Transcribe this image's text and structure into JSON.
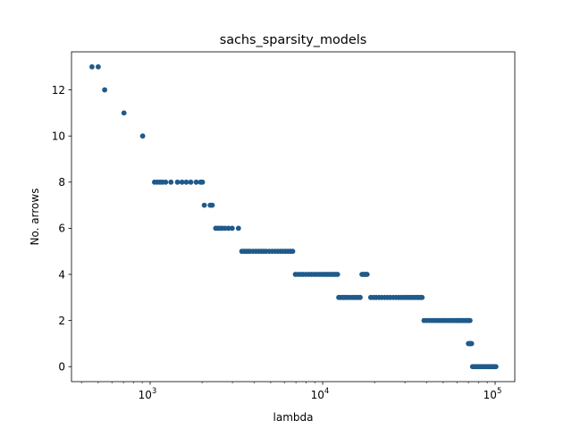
{
  "chart_data": {
    "type": "scatter",
    "title": "sachs_sparsity_models",
    "xlabel": "lambda",
    "ylabel": "No. arrows",
    "xscale": "log",
    "xlim": [
      350,
      130000
    ],
    "ylim": [
      -0.65,
      13.65
    ],
    "grid": false,
    "marker_color": "#1f5a8b",
    "x_ticks": [
      {
        "value": 1000,
        "base": "10",
        "exp": "3"
      },
      {
        "value": 10000,
        "base": "10",
        "exp": "4"
      },
      {
        "value": 100000,
        "base": "10",
        "exp": "5"
      }
    ],
    "y_ticks": [
      0,
      2,
      4,
      6,
      8,
      10,
      12
    ],
    "points": [
      [
        460,
        13
      ],
      [
        500,
        13
      ],
      [
        545,
        12
      ],
      [
        705,
        11
      ],
      [
        905,
        10
      ],
      [
        1060,
        8
      ],
      [
        1100,
        8
      ],
      [
        1140,
        8
      ],
      [
        1180,
        8
      ],
      [
        1230,
        8
      ],
      [
        1320,
        8
      ],
      [
        1440,
        8
      ],
      [
        1530,
        8
      ],
      [
        1620,
        8
      ],
      [
        1720,
        8
      ],
      [
        1850,
        8
      ],
      [
        1960,
        8
      ],
      [
        2010,
        8
      ],
      [
        2060,
        7
      ],
      [
        2230,
        7
      ],
      [
        2290,
        7
      ],
      [
        2400,
        6
      ],
      [
        2470,
        6
      ],
      [
        2540,
        6
      ],
      [
        2620,
        6
      ],
      [
        2720,
        6
      ],
      [
        2850,
        6
      ],
      [
        2990,
        6
      ],
      [
        3250,
        6
      ],
      [
        3400,
        5
      ],
      [
        3500,
        5
      ],
      [
        3600,
        5
      ],
      [
        3700,
        5
      ],
      [
        3800,
        5
      ],
      [
        3950,
        5
      ],
      [
        4100,
        5
      ],
      [
        4250,
        5
      ],
      [
        4400,
        5
      ],
      [
        4550,
        5
      ],
      [
        4700,
        5
      ],
      [
        4900,
        5
      ],
      [
        5100,
        5
      ],
      [
        5300,
        5
      ],
      [
        5500,
        5
      ],
      [
        5700,
        5
      ],
      [
        5900,
        5
      ],
      [
        6100,
        5
      ],
      [
        6300,
        5
      ],
      [
        6500,
        5
      ],
      [
        6700,
        5
      ],
      [
        6950,
        4
      ],
      [
        7200,
        4
      ],
      [
        7450,
        4
      ],
      [
        7700,
        4
      ],
      [
        8000,
        4
      ],
      [
        8300,
        4
      ],
      [
        8600,
        4
      ],
      [
        8900,
        4
      ],
      [
        9200,
        4
      ],
      [
        9500,
        4
      ],
      [
        9800,
        4
      ],
      [
        10100,
        4
      ],
      [
        10400,
        4
      ],
      [
        10700,
        4
      ],
      [
        11000,
        4
      ],
      [
        11300,
        4
      ],
      [
        11600,
        4
      ],
      [
        11900,
        4
      ],
      [
        12200,
        4
      ],
      [
        16900,
        4
      ],
      [
        17200,
        4
      ],
      [
        17500,
        4
      ],
      [
        17800,
        4
      ],
      [
        18100,
        4
      ],
      [
        12400,
        3
      ],
      [
        12800,
        3
      ],
      [
        13200,
        3
      ],
      [
        13600,
        3
      ],
      [
        14000,
        3
      ],
      [
        14500,
        3
      ],
      [
        15000,
        3
      ],
      [
        15500,
        3
      ],
      [
        16000,
        3
      ],
      [
        16500,
        3
      ],
      [
        19000,
        3
      ],
      [
        19700,
        3
      ],
      [
        20400,
        3
      ],
      [
        21200,
        3
      ],
      [
        22000,
        3
      ],
      [
        22900,
        3
      ],
      [
        23800,
        3
      ],
      [
        24700,
        3
      ],
      [
        25700,
        3
      ],
      [
        26700,
        3
      ],
      [
        27700,
        3
      ],
      [
        28700,
        3
      ],
      [
        29700,
        3
      ],
      [
        30700,
        3
      ],
      [
        31700,
        3
      ],
      [
        32700,
        3
      ],
      [
        33700,
        3
      ],
      [
        34700,
        3
      ],
      [
        35700,
        3
      ],
      [
        36700,
        3
      ],
      [
        37700,
        3
      ],
      [
        38700,
        2
      ],
      [
        40000,
        2
      ],
      [
        41500,
        2
      ],
      [
        43000,
        2
      ],
      [
        44500,
        2
      ],
      [
        46000,
        2
      ],
      [
        47500,
        2
      ],
      [
        49000,
        2
      ],
      [
        50500,
        2
      ],
      [
        52000,
        2
      ],
      [
        53500,
        2
      ],
      [
        55000,
        2
      ],
      [
        56500,
        2
      ],
      [
        58000,
        2
      ],
      [
        59500,
        2
      ],
      [
        61000,
        2
      ],
      [
        62500,
        2
      ],
      [
        64000,
        2
      ],
      [
        65500,
        2
      ],
      [
        67000,
        2
      ],
      [
        68500,
        2
      ],
      [
        70000,
        2
      ],
      [
        71500,
        2
      ],
      [
        70000,
        1
      ],
      [
        71000,
        1
      ],
      [
        72000,
        1
      ],
      [
        73000,
        1
      ],
      [
        74000,
        0
      ],
      [
        75500,
        0
      ],
      [
        77000,
        0
      ],
      [
        78500,
        0
      ],
      [
        80000,
        0
      ],
      [
        81500,
        0
      ],
      [
        83000,
        0
      ],
      [
        84500,
        0
      ],
      [
        86000,
        0
      ],
      [
        87500,
        0
      ],
      [
        89000,
        0
      ],
      [
        90500,
        0
      ],
      [
        92000,
        0
      ],
      [
        93500,
        0
      ],
      [
        95000,
        0
      ],
      [
        96500,
        0
      ],
      [
        98000,
        0
      ],
      [
        99500,
        0
      ],
      [
        101000,
        0
      ]
    ]
  }
}
